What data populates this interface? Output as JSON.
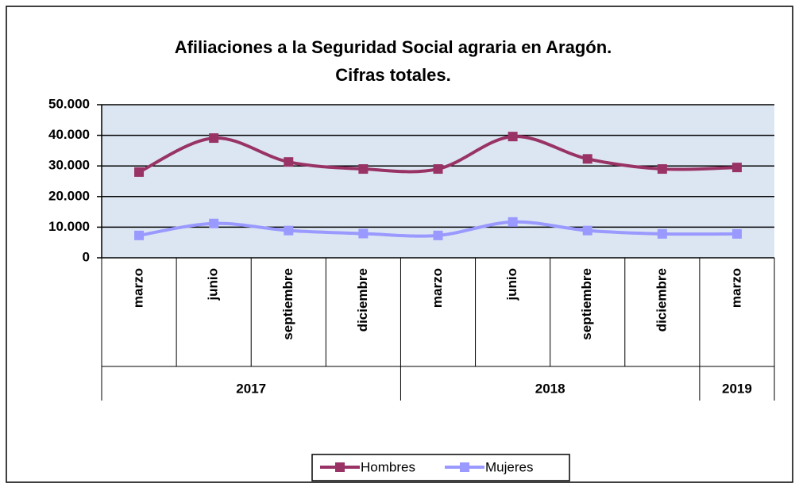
{
  "chart_data": {
    "type": "line",
    "title": [
      "Afiliaciones a la Seguridad Social agraria en Aragón.",
      "Cifras totales."
    ],
    "groups": [
      {
        "label": "2017",
        "categories": [
          "marzo",
          "junio",
          "septiembre",
          "diciembre"
        ]
      },
      {
        "label": "2018",
        "categories": [
          "marzo",
          "junio",
          "septiembre",
          "diciembre"
        ]
      },
      {
        "label": "2019",
        "categories": [
          "marzo"
        ]
      }
    ],
    "series": [
      {
        "name": "Hombres",
        "color": "#993366",
        "values": [
          28000,
          39100,
          31300,
          29000,
          29000,
          39600,
          32300,
          29000,
          29500
        ]
      },
      {
        "name": "Mujeres",
        "color": "#9999ff",
        "values": [
          7300,
          11200,
          8900,
          7900,
          7300,
          11700,
          8900,
          7800,
          7800
        ]
      }
    ],
    "ylim": [
      0,
      50000
    ],
    "yticks": [
      {
        "value": 0,
        "label": "0"
      },
      {
        "value": 10000,
        "label": "10.000"
      },
      {
        "value": 20000,
        "label": "20.000"
      },
      {
        "value": 30000,
        "label": "30.000"
      },
      {
        "value": 40000,
        "label": "40.000"
      },
      {
        "value": 50000,
        "label": "50.000"
      }
    ],
    "grid": true,
    "smooth": true,
    "legend": "bottom"
  }
}
